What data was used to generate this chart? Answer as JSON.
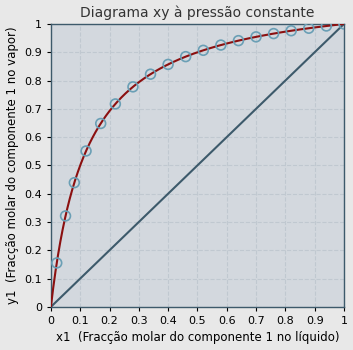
{
  "title": "Diagrama xy à pressão constante",
  "xlabel": "x1  (Fracção molar do componente 1 no líquido)",
  "ylabel": "y1  (Fracção molar do componente 1 no vapor)",
  "xlim": [
    0,
    1
  ],
  "ylim": [
    0,
    1
  ],
  "xticks": [
    0,
    0.1,
    0.2,
    0.3,
    0.4,
    0.5,
    0.6,
    0.7,
    0.8,
    0.9,
    1.0
  ],
  "yticks": [
    0,
    0.1,
    0.2,
    0.3,
    0.4,
    0.5,
    0.6,
    0.7,
    0.8,
    0.9,
    1.0
  ],
  "diagonal_color": "#3d5a6b",
  "curve_color": "#8b1010",
  "marker_edge_color": "#6a9fb5",
  "background_color": "#d3d8de",
  "grid_color": "#c0c8d0",
  "alpha_param": 9.0,
  "scatter_x": [
    0.02,
    0.05,
    0.08,
    0.12,
    0.17,
    0.22,
    0.28,
    0.34,
    0.4,
    0.46,
    0.52,
    0.58,
    0.64,
    0.7,
    0.76,
    0.82,
    0.88,
    0.94,
    1.0
  ],
  "title_fontsize": 10,
  "label_fontsize": 8.5,
  "tick_fontsize": 8
}
